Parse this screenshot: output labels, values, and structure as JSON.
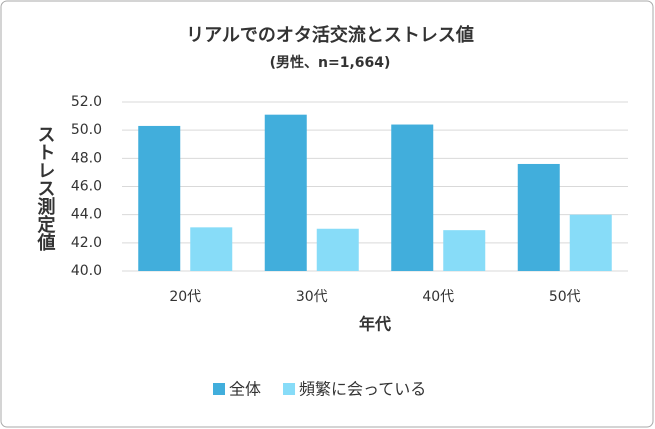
{
  "chart_data": {
    "type": "bar",
    "title": "リアルでのオタ活交流とストレス値",
    "subtitle": "(男性、n=1,664)",
    "y_label": "ストレス測定値",
    "x_label": "年代",
    "categories": [
      "20代",
      "30代",
      "40代",
      "50代"
    ],
    "series": [
      {
        "name": "全体",
        "color": "#41aedc",
        "values": [
          50.3,
          51.1,
          50.4,
          47.6
        ]
      },
      {
        "name": "頻繁に会っている",
        "color": "#87dcf8",
        "values": [
          43.1,
          43.0,
          42.9,
          44.0
        ]
      }
    ],
    "ylim": [
      40,
      52
    ],
    "yticks": [
      {
        "value": 40,
        "label": "40.0"
      },
      {
        "value": 42,
        "label": "42.0"
      },
      {
        "value": 44,
        "label": "44.0"
      },
      {
        "value": 46,
        "label": "46.0"
      },
      {
        "value": 48,
        "label": "48.0"
      },
      {
        "value": 50,
        "label": "50.0"
      },
      {
        "value": 52,
        "label": "52.0"
      }
    ],
    "grid": true,
    "legend": "bottom"
  }
}
